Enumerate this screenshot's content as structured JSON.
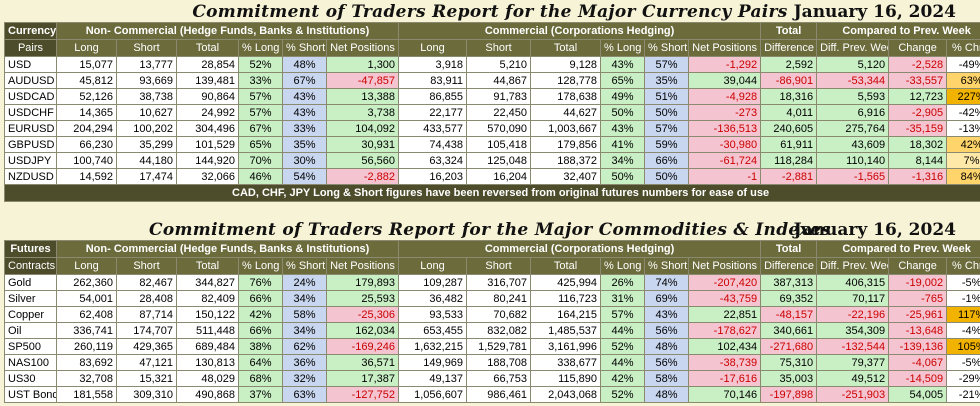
{
  "currency": {
    "title": "Commitment of Traders Report for the Major Currency Pairs",
    "date": "January 16, 2024",
    "header": {
      "col1a": "Currency",
      "col1b": "Pairs",
      "noncomm": "Non- Commercial (Hedge Funds, Banks & Institutions)",
      "comm": "Commercial (Corporations Hedging)",
      "total": "Total",
      "compared": "Compared to Prev. Week",
      "sub": [
        "Long",
        "Short",
        "Total",
        "% Long",
        "% Short",
        "Net Positions",
        "Long",
        "Short",
        "Total",
        "% Long",
        "% Short",
        "Net Positions",
        "Difference",
        "Diff. Prev. Week",
        "Change",
        "% Chng"
      ]
    },
    "rows": [
      {
        "name": "USD",
        "v": [
          "15,077",
          "13,777",
          "28,854",
          "52%",
          "48%",
          "1,300",
          "3,918",
          "5,210",
          "9,128",
          "43%",
          "57%",
          "-1,292",
          "2,592",
          "5,120",
          "-2,528",
          "-49%"
        ]
      },
      {
        "name": "AUDUSD",
        "v": [
          "45,812",
          "93,669",
          "139,481",
          "33%",
          "67%",
          "-47,857",
          "83,911",
          "44,867",
          "128,778",
          "65%",
          "35%",
          "39,044",
          "-86,901",
          "-53,344",
          "-33,557",
          "63%"
        ]
      },
      {
        "name": "USDCAD",
        "v": [
          "52,126",
          "38,738",
          "90,864",
          "57%",
          "43%",
          "13,388",
          "86,855",
          "91,783",
          "178,638",
          "49%",
          "51%",
          "-4,928",
          "18,316",
          "5,593",
          "12,723",
          "227%"
        ]
      },
      {
        "name": "USDCHF",
        "v": [
          "14,365",
          "10,627",
          "24,992",
          "57%",
          "43%",
          "3,738",
          "22,177",
          "22,450",
          "44,627",
          "50%",
          "50%",
          "-273",
          "4,011",
          "6,916",
          "-2,905",
          "-42%"
        ]
      },
      {
        "name": "EURUSD",
        "v": [
          "204,294",
          "100,202",
          "304,496",
          "67%",
          "33%",
          "104,092",
          "433,577",
          "570,090",
          "1,003,667",
          "43%",
          "57%",
          "-136,513",
          "240,605",
          "275,764",
          "-35,159",
          "-13%"
        ]
      },
      {
        "name": "GBPUSD",
        "v": [
          "66,230",
          "35,299",
          "101,529",
          "65%",
          "35%",
          "30,931",
          "74,438",
          "105,418",
          "179,856",
          "41%",
          "59%",
          "-30,980",
          "61,911",
          "43,609",
          "18,302",
          "42%"
        ]
      },
      {
        "name": "USDJPY",
        "v": [
          "100,740",
          "44,180",
          "144,920",
          "70%",
          "30%",
          "56,560",
          "63,324",
          "125,048",
          "188,372",
          "34%",
          "66%",
          "-61,724",
          "118,284",
          "110,140",
          "8,144",
          "7%"
        ]
      },
      {
        "name": "NZDUSD",
        "v": [
          "14,592",
          "17,474",
          "32,066",
          "46%",
          "54%",
          "-2,882",
          "16,203",
          "16,204",
          "32,407",
          "50%",
          "50%",
          "-1",
          "-2,881",
          "-1,565",
          "-1,316",
          "84%"
        ]
      }
    ],
    "note": "CAD, CHF, JPY Long & Short figures have been reversed from original futures numbers for ease of use"
  },
  "commodities": {
    "title": "Commitment of Traders Report for the Major Commodities & Indexes",
    "date": "January 16, 2024",
    "header": {
      "col1a": "Futures",
      "col1b": "Contracts",
      "noncomm": "Non- Commercial (Hedge Funds, Banks & Institutions)",
      "comm": "Commercial (Corporations Hedging)",
      "total": "Total",
      "compared": "Compared to Prev. Week",
      "sub": [
        "Long",
        "Short",
        "Total",
        "% Long",
        "% Short",
        "Net Positions",
        "Long",
        "Short",
        "Total",
        "% Long",
        "% Short",
        "Net Positions",
        "Difference",
        "Diff. Prev. Week",
        "Change",
        "% Chng"
      ]
    },
    "rows": [
      {
        "name": "Gold",
        "v": [
          "262,360",
          "82,467",
          "344,827",
          "76%",
          "24%",
          "179,893",
          "109,287",
          "316,707",
          "425,994",
          "26%",
          "74%",
          "-207,420",
          "387,313",
          "406,315",
          "-19,002",
          "-5%"
        ]
      },
      {
        "name": "Silver",
        "v": [
          "54,001",
          "28,408",
          "82,409",
          "66%",
          "34%",
          "25,593",
          "36,482",
          "80,241",
          "116,723",
          "31%",
          "69%",
          "-43,759",
          "69,352",
          "70,117",
          "-765",
          "-1%"
        ]
      },
      {
        "name": "Copper",
        "v": [
          "62,408",
          "87,714",
          "150,122",
          "42%",
          "58%",
          "-25,306",
          "93,533",
          "70,682",
          "164,215",
          "57%",
          "43%",
          "22,851",
          "-48,157",
          "-22,196",
          "-25,961",
          "117%"
        ]
      },
      {
        "name": "Oil",
        "v": [
          "336,741",
          "174,707",
          "511,448",
          "66%",
          "34%",
          "162,034",
          "653,455",
          "832,082",
          "1,485,537",
          "44%",
          "56%",
          "-178,627",
          "340,661",
          "354,309",
          "-13,648",
          "-4%"
        ]
      },
      {
        "name": "SP500",
        "v": [
          "260,119",
          "429,365",
          "689,484",
          "38%",
          "62%",
          "-169,246",
          "1,632,215",
          "1,529,781",
          "3,161,996",
          "52%",
          "48%",
          "102,434",
          "-271,680",
          "-132,544",
          "-139,136",
          "105%"
        ]
      },
      {
        "name": "NAS100",
        "v": [
          "83,692",
          "47,121",
          "130,813",
          "64%",
          "36%",
          "36,571",
          "149,969",
          "188,708",
          "338,677",
          "44%",
          "56%",
          "-38,739",
          "75,310",
          "79,377",
          "-4,067",
          "-5%"
        ]
      },
      {
        "name": "US30",
        "v": [
          "32,708",
          "15,321",
          "48,029",
          "68%",
          "32%",
          "17,387",
          "49,137",
          "66,753",
          "115,890",
          "42%",
          "58%",
          "-17,616",
          "35,003",
          "49,512",
          "-14,509",
          "-29%"
        ]
      },
      {
        "name": "UST Bond",
        "v": [
          "181,558",
          "309,310",
          "490,868",
          "37%",
          "63%",
          "-127,752",
          "1,056,607",
          "986,461",
          "2,043,068",
          "52%",
          "48%",
          "70,146",
          "-197,898",
          "-251,903",
          "54,005",
          "-21%"
        ]
      }
    ]
  },
  "colors": {
    "positive": "#c9efc5",
    "negative": "#f4c4d0",
    "long": "#c9efc5",
    "short": "#c8d6ef",
    "header": "#6b6b3c",
    "highlight": "#f2b300"
  }
}
